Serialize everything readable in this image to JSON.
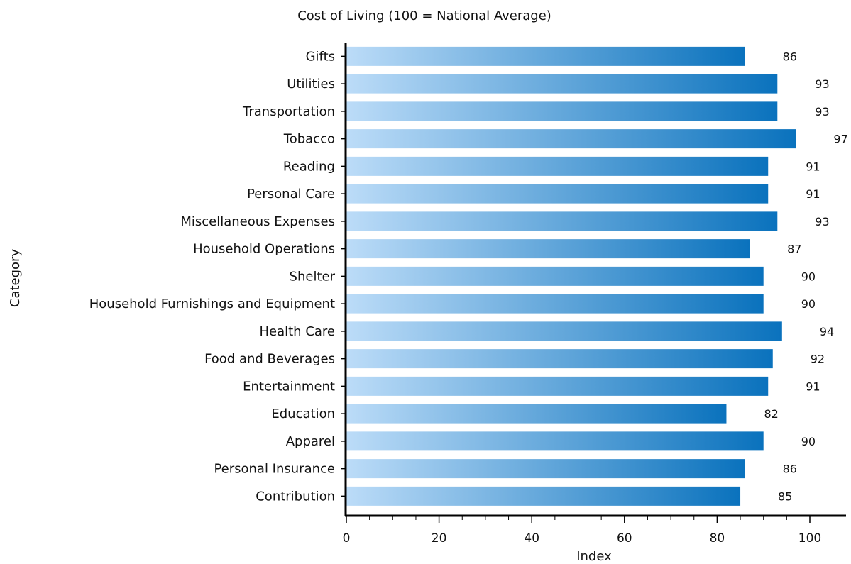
{
  "chart_data": {
    "type": "bar",
    "orientation": "horizontal",
    "title": "Cost of Living (100 = National Average)",
    "xlabel": "Index",
    "ylabel": "Category",
    "xlim": [
      0,
      100
    ],
    "xticks": [
      0,
      20,
      40,
      60,
      80,
      100
    ],
    "grid": false,
    "bar_color_start": "#bcdcf8",
    "bar_color_end": "#0a72bd",
    "categories": [
      "Gifts",
      "Utilities",
      "Transportation",
      "Tobacco",
      "Reading",
      "Personal Care",
      "Miscellaneous Expenses",
      "Household Operations",
      "Shelter",
      "Household Furnishings and Equipment",
      "Health Care",
      "Food and Beverages",
      "Entertainment",
      "Education",
      "Apparel",
      "Personal Insurance",
      "Contribution"
    ],
    "values": [
      86,
      93,
      93,
      97,
      91,
      91,
      93,
      87,
      90,
      90,
      94,
      92,
      91,
      82,
      90,
      86,
      85
    ]
  }
}
